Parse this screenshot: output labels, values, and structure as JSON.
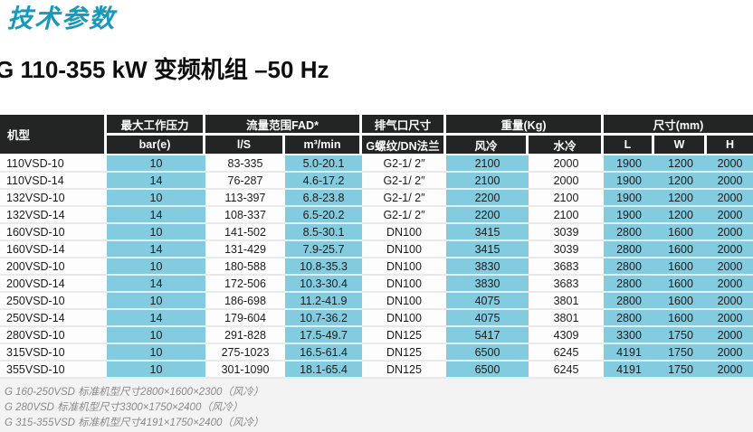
{
  "page": {
    "title": "技术参数",
    "subtitle": "G 110-355 kW 变频机组 –50 Hz"
  },
  "colors": {
    "accent_teal": "#1898ba",
    "header_bg": "#232424",
    "cell_cyan": "#83ccdf",
    "footer_bg": "#f2f3f2"
  },
  "table": {
    "headers": {
      "model": "机型",
      "pressure_group": "最大工作压力",
      "pressure_unit": "bar(e)",
      "flow_group": "流量范围FAD*",
      "flow_ls": "l/S",
      "flow_m3": "m³/min",
      "port_group": "排气口尺寸",
      "port_sub": "G螺纹/DN法兰",
      "weight_group": "重量(Kg)",
      "weight_air": "风冷",
      "weight_water": "水冷",
      "dims_group": "尺寸(mm)",
      "dim_l": "L",
      "dim_w": "W",
      "dim_h": "H"
    },
    "rows": [
      [
        "110VSD-10",
        "10",
        "83-335",
        "5.0-20.1",
        "G2-1/ 2″",
        "2100",
        "2000",
        "1900",
        "1200",
        "2000"
      ],
      [
        "110VSD-14",
        "14",
        "76-287",
        "4.6-17.2",
        "G2-1/ 2″",
        "2100",
        "2000",
        "1900",
        "1200",
        "2000"
      ],
      [
        "132VSD-10",
        "10",
        "113-397",
        "6.8-23.8",
        "G2-1/ 2″",
        "2200",
        "2100",
        "1900",
        "1200",
        "2000"
      ],
      [
        "132VSD-14",
        "14",
        "108-337",
        "6.5-20.2",
        "G2-1/ 2″",
        "2200",
        "2100",
        "1900",
        "1200",
        "2000"
      ],
      [
        "160VSD-10",
        "10",
        "141-502",
        "8.5-30.1",
        "DN100",
        "3415",
        "3039",
        "2800",
        "1600",
        "2000"
      ],
      [
        "160VSD-14",
        "14",
        "131-429",
        "7.9-25.7",
        "DN100",
        "3415",
        "3039",
        "2800",
        "1600",
        "2000"
      ],
      [
        "200VSD-10",
        "10",
        "180-588",
        "10.8-35.3",
        "DN100",
        "3830",
        "3683",
        "2800",
        "1600",
        "2000"
      ],
      [
        "200VSD-14",
        "14",
        "172-506",
        "10.3-30.4",
        "DN100",
        "3830",
        "3683",
        "2800",
        "1600",
        "2000"
      ],
      [
        "250VSD-10",
        "10",
        "186-698",
        "11.2-41.9",
        "DN100",
        "4075",
        "3801",
        "2800",
        "1600",
        "2000"
      ],
      [
        "250VSD-14",
        "14",
        "179-604",
        "10.7-36.2",
        "DN100",
        "4075",
        "3801",
        "2800",
        "1600",
        "2000"
      ],
      [
        "280VSD-10",
        "10",
        "291-828",
        "17.5-49.7",
        "DN125",
        "5417",
        "4309",
        "3300",
        "1750",
        "2000"
      ],
      [
        "315VSD-10",
        "10",
        "275-1023",
        "16.5-61.4",
        "DN125",
        "6500",
        "6245",
        "4191",
        "1750",
        "2000"
      ],
      [
        "355VSD-10",
        "10",
        "301-1090",
        "18.1-65.4",
        "DN125",
        "6500",
        "6245",
        "4191",
        "1750",
        "2000"
      ]
    ]
  },
  "footnotes": [
    "G 160-250VSD 标准机型尺寸2800×1600×2300（风冷）",
    "G 280VSD 标准机型尺寸3300×1750×2400（风冷）",
    "G 315-355VSD 标准机型尺寸4191×1750×2400（风冷）"
  ]
}
